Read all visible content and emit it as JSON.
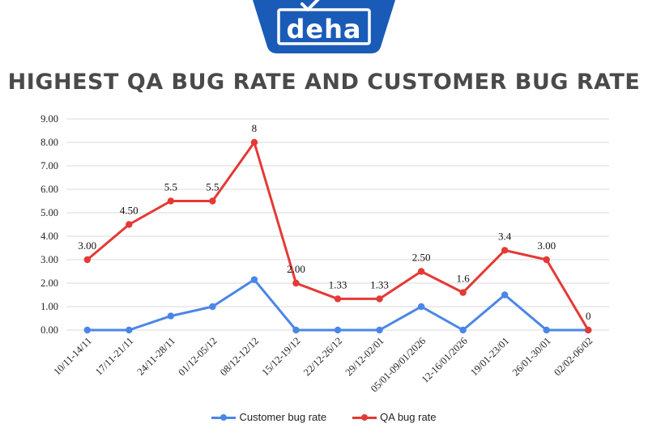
{
  "logo": {
    "text": "deha",
    "color": "#1a5bb8"
  },
  "chart_data": {
    "type": "line",
    "title": "HIGHEST QA BUG RATE AND CUSTOMER BUG RATE",
    "xlabel": "",
    "ylabel": "",
    "ylim": [
      0,
      9
    ],
    "yticks": [
      "0.00",
      "1.00",
      "2.00",
      "3.00",
      "4.00",
      "5.00",
      "6.00",
      "7.00",
      "8.00",
      "9.00"
    ],
    "grid": true,
    "legend_position": "bottom",
    "categories": [
      "10/11-14/11",
      "17/11-21/11",
      "24/11-28/11",
      "01/12-05/12",
      "08/12-12/12",
      "15/12-19/12",
      "22/12-26/12",
      "29/12-02/01",
      "05/01-09/01/2026",
      "12-16/01/2026",
      "19/01-23/01",
      "26/01-30/01",
      "02/02-06/02"
    ],
    "series": [
      {
        "name": "Customer bug rate",
        "color": "#4a86e8",
        "values": [
          0,
          0,
          0.6,
          1.0,
          2.15,
          0,
          0,
          0,
          1.0,
          0,
          1.5,
          0,
          0
        ]
      },
      {
        "name": "QA bug rate",
        "color": "#e53935",
        "values": [
          3.0,
          4.5,
          5.5,
          5.5,
          8,
          2.0,
          1.33,
          1.33,
          2.5,
          1.6,
          3.4,
          3.0,
          0
        ],
        "labels": [
          "3.00",
          "4.50",
          "5.5",
          "5.5",
          "8",
          "2.00",
          "1.33",
          "1.33",
          "2.50",
          "1.6",
          "3.4",
          "3.00",
          "0"
        ]
      }
    ]
  }
}
